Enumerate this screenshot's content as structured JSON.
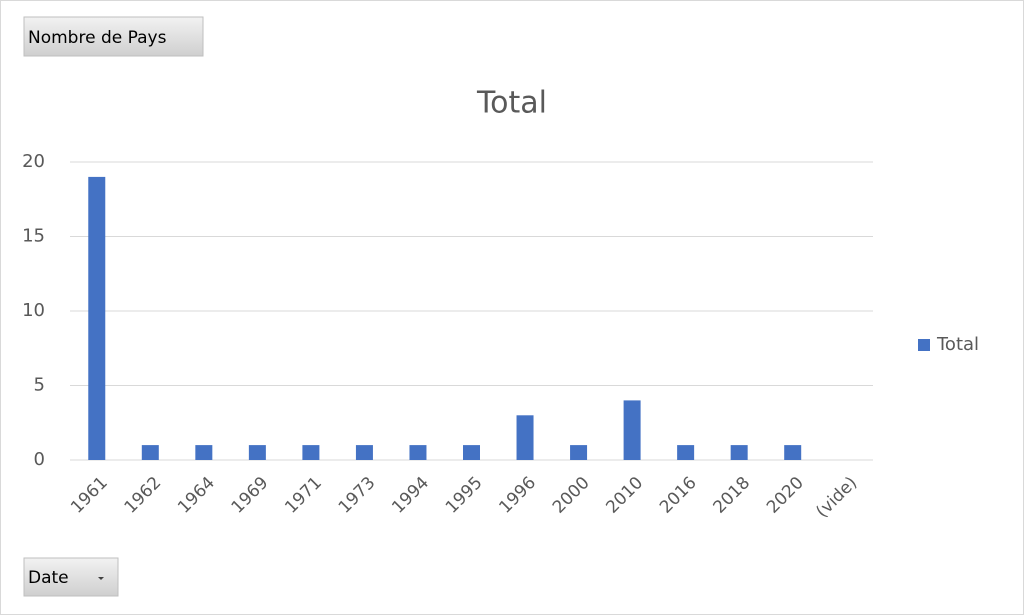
{
  "chart_data": {
    "type": "bar",
    "title": "Total",
    "value_field_button": "Nombre de Pays",
    "axis_field_button": "Date",
    "categories": [
      "1961",
      "1962",
      "1964",
      "1969",
      "1971",
      "1973",
      "1994",
      "1995",
      "1996",
      "2000",
      "2010",
      "2016",
      "2018",
      "2020",
      "(vide)"
    ],
    "series": [
      {
        "name": "Total",
        "color": "#4472c4",
        "values": [
          19,
          1,
          1,
          1,
          1,
          1,
          1,
          1,
          3,
          1,
          4,
          1,
          1,
          1,
          null
        ]
      }
    ],
    "ylim": [
      0,
      20
    ],
    "yticks": [
      0,
      5,
      10,
      15,
      20
    ],
    "grid": true,
    "legend": "right"
  }
}
